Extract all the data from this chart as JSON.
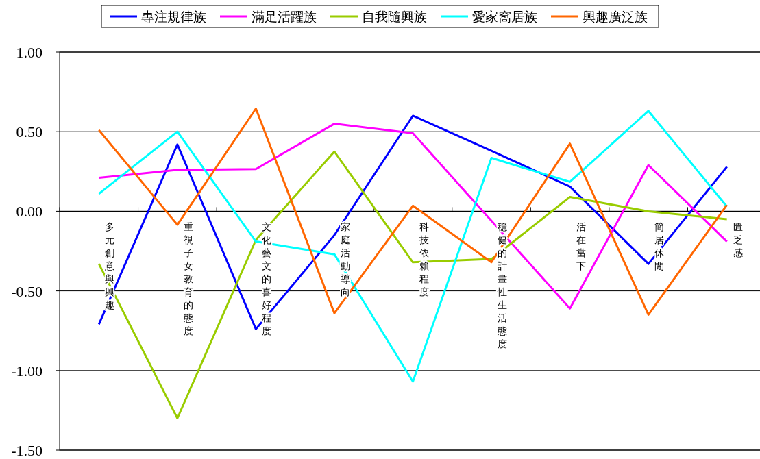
{
  "chart_data": {
    "type": "line",
    "categories": [
      "多元創意與興趣",
      "重視子女教育的態度",
      "文化藝文的喜好程度",
      "家庭活動導向",
      "科技依賴程度",
      "穩健的計畫性生活態度",
      "活在當下",
      "簡居休閒",
      "匱乏感"
    ],
    "series": [
      {
        "name": "專注規律族",
        "color": "#0000ff",
        "values": [
          -0.71,
          0.42,
          -0.74,
          -0.15,
          0.6,
          0.38,
          0.155,
          -0.33,
          0.28
        ]
      },
      {
        "name": "滿足活躍族",
        "color": "#ff00ff",
        "values": [
          0.21,
          0.26,
          0.265,
          0.55,
          0.49,
          -0.06,
          -0.61,
          0.29,
          -0.19
        ]
      },
      {
        "name": "自我隨興族",
        "color": "#99cc00",
        "values": [
          -0.33,
          -1.3,
          -0.18,
          0.375,
          -0.32,
          -0.3,
          0.09,
          0.0,
          -0.05
        ]
      },
      {
        "name": "愛家窩居族",
        "color": "#00ffff",
        "values": [
          0.11,
          0.5,
          -0.19,
          -0.27,
          -1.07,
          0.335,
          0.185,
          0.63,
          0.03
        ]
      },
      {
        "name": "興趣廣泛族",
        "color": "#ff6600",
        "values": [
          0.51,
          -0.085,
          0.645,
          -0.64,
          0.035,
          -0.32,
          0.425,
          -0.65,
          0.04
        ]
      }
    ],
    "ylim": [
      -1.5,
      1
    ],
    "yticks": [
      {
        "value": -1.5,
        "label": "-1.50"
      },
      {
        "value": -1,
        "label": "-1.00"
      },
      {
        "value": -0.5,
        "label": "-0.50"
      },
      {
        "value": 0,
        "label": "0.00"
      },
      {
        "value": 0.5,
        "label": "0.50"
      },
      {
        "value": 1,
        "label": "1.00"
      }
    ],
    "grid": "y",
    "legend": "top"
  }
}
